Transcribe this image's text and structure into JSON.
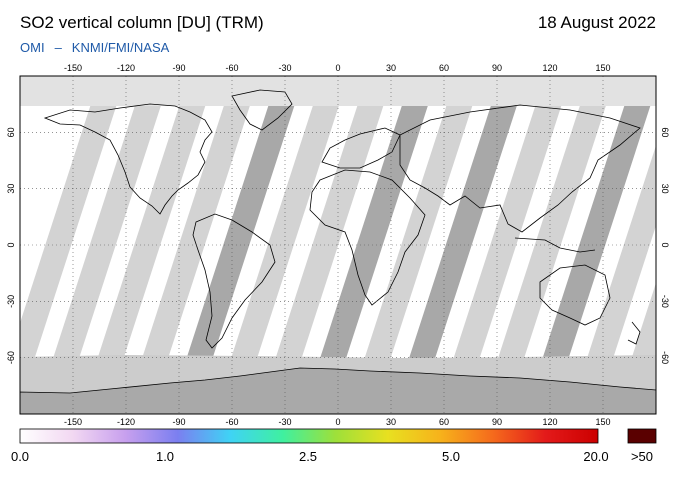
{
  "header": {
    "title": "SO2 vertical column [DU] (TRM)",
    "date": "18 August 2022",
    "instrument": "OMI",
    "separator": "–",
    "provider": "KNMI/FMI/NASA"
  },
  "map": {
    "projection": "equirectangular",
    "lon_range": [
      -180,
      180
    ],
    "lat_range": [
      -90,
      90
    ],
    "gridlines": true,
    "top_ticks": [
      "-150",
      "-120",
      "-90",
      "-60",
      "-30",
      "0",
      "30",
      "60",
      "90",
      "120",
      "150"
    ],
    "bottom_ticks": [
      "-150",
      "-120",
      "-90",
      "-60",
      "-30",
      "0",
      "30",
      "60",
      "90",
      "120",
      "150"
    ],
    "lat_ticks": [
      "60",
      "30",
      "0",
      "-30",
      "-60"
    ],
    "colors": {
      "coverage": "#d3d3d3",
      "no_data": "#ffffff",
      "polar": "#cccccc",
      "antarctica": "#a9a9a9",
      "darker_swath": "#a8a8a8",
      "coastline": "#000000"
    }
  },
  "colorbar": {
    "labels": [
      "0.0",
      "1.0",
      "2.5",
      "5.0",
      "20.0"
    ],
    "overflow_label": ">50",
    "overflow_color": "#5a0000",
    "gradient": [
      "#ffffff",
      "#f2d8f2",
      "#c8a0ee",
      "#7b7ff0",
      "#3fd3f5",
      "#3ff0a0",
      "#9de03a",
      "#e8e020",
      "#f7b21b",
      "#f56a1c",
      "#e31a1a",
      "#cc0000"
    ]
  }
}
